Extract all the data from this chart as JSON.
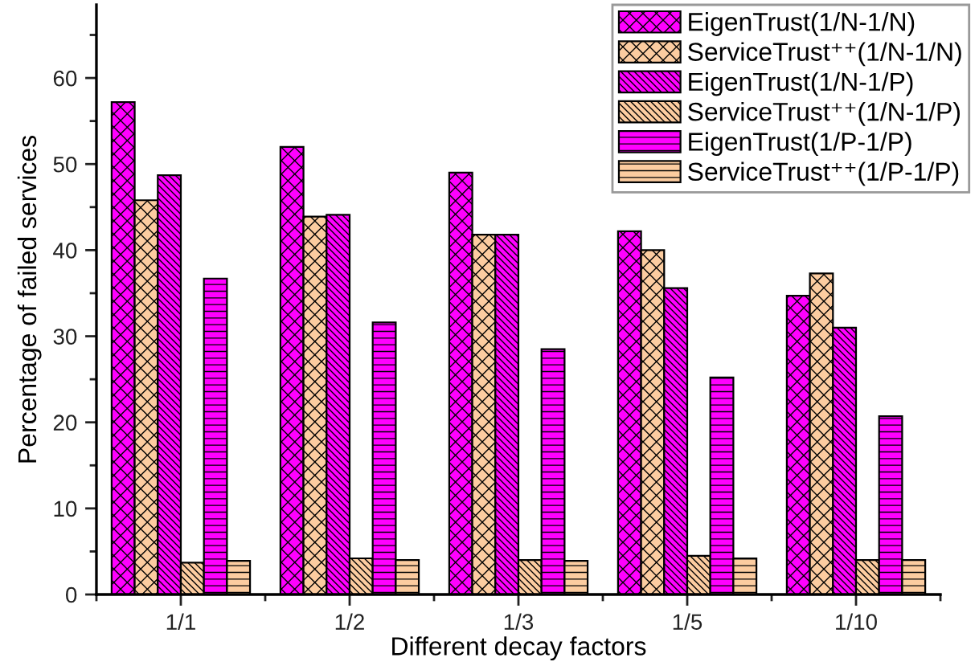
{
  "chart_data": {
    "type": "bar",
    "xlabel": "Different decay factors",
    "ylabel": "Percentage of failed services",
    "categories": [
      "1/1",
      "1/2",
      "1/3",
      "1/5",
      "1/10"
    ],
    "series": [
      {
        "name": "EigenTrust(1/N-1/N)",
        "color": "#ff00ff",
        "values": [
          57.2,
          52.0,
          49.0,
          42.2,
          34.7
        ]
      },
      {
        "name": "ServiceTrust⁺⁺(1/N-1/N)",
        "color": "#fccca0",
        "values": [
          45.8,
          43.9,
          41.8,
          40.0,
          37.3
        ]
      },
      {
        "name": "EigenTrust(1/N-1/P)",
        "color": "#ff00ff",
        "values": [
          48.7,
          44.1,
          41.8,
          35.6,
          31.0
        ]
      },
      {
        "name": "ServiceTrust⁺⁺(1/N-1/P)",
        "color": "#fccca0",
        "values": [
          3.7,
          4.2,
          4.0,
          4.5,
          4.0
        ]
      },
      {
        "name": "EigenTrust(1/P-1/P)",
        "color": "#ff00ff",
        "values": [
          36.7,
          31.6,
          28.5,
          25.2,
          20.7
        ]
      },
      {
        "name": "ServiceTrust⁺⁺(1/P-1/P)",
        "color": "#fccca0",
        "values": [
          3.9,
          4.0,
          3.9,
          4.2,
          4.0
        ]
      }
    ],
    "ylim": [
      0,
      68.5
    ],
    "yticks": [
      0,
      10,
      20,
      30,
      40,
      50,
      60
    ],
    "grid": false,
    "legend": "top right"
  }
}
